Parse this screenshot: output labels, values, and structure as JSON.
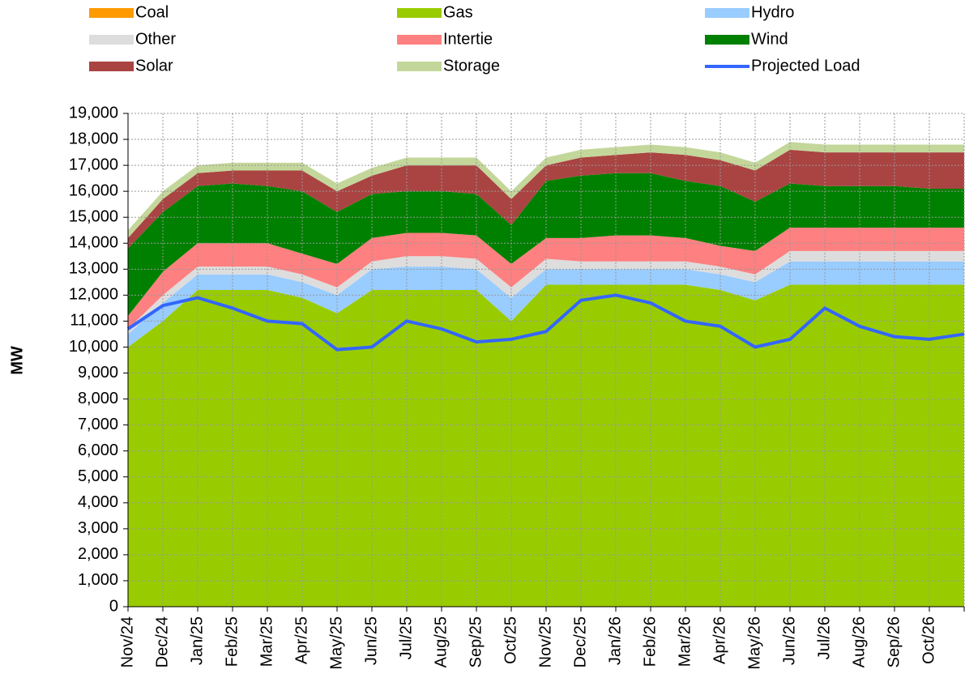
{
  "chart_data": {
    "type": "area",
    "y_label": "MW",
    "categories": [
      "Nov/24",
      "Dec/24",
      "Jan/25",
      "Feb/25",
      "Mar/25",
      "Apr/25",
      "May/25",
      "Jun/25",
      "Jul/25",
      "Aug/25",
      "Sep/25",
      "Oct/25",
      "Nov/25",
      "Dec/25",
      "Jan/26",
      "Feb/26",
      "Mar/26",
      "Apr/26",
      "May/26",
      "Jun/26",
      "Jul/26",
      "Aug/26",
      "Sep/26",
      "Oct/26",
      null
    ],
    "series": [
      {
        "name": "Coal",
        "color": "#ff9900",
        "values": [
          0,
          0,
          0,
          0,
          0,
          0,
          0,
          0,
          0,
          0,
          0,
          0,
          0,
          0,
          0,
          0,
          0,
          0,
          0,
          0,
          0,
          0,
          0,
          0,
          0
        ]
      },
      {
        "name": "Gas",
        "color": "#99cc00",
        "values": [
          10000,
          11000,
          12200,
          12200,
          12200,
          11900,
          11300,
          12200,
          12200,
          12200,
          12200,
          11000,
          12400,
          12400,
          12400,
          12400,
          12400,
          12200,
          11800,
          12400,
          12400,
          12400,
          12400,
          12400,
          12400
        ]
      },
      {
        "name": "Hydro",
        "color": "#99ccff",
        "values": [
          500,
          700,
          600,
          600,
          600,
          600,
          700,
          800,
          900,
          900,
          800,
          900,
          600,
          600,
          600,
          600,
          600,
          600,
          700,
          900,
          900,
          900,
          900,
          900,
          900
        ]
      },
      {
        "name": "Other",
        "color": "#dddddd",
        "values": [
          200,
          300,
          300,
          300,
          300,
          300,
          300,
          300,
          400,
          400,
          400,
          400,
          400,
          300,
          300,
          300,
          300,
          300,
          300,
          400,
          400,
          400,
          400,
          400,
          400
        ]
      },
      {
        "name": "Intertie",
        "color": "#ff8080",
        "values": [
          500,
          900,
          900,
          900,
          900,
          800,
          900,
          900,
          900,
          900,
          900,
          900,
          800,
          900,
          1000,
          1000,
          900,
          800,
          900,
          900,
          900,
          900,
          900,
          900,
          900
        ]
      },
      {
        "name": "Wind",
        "color": "#008000",
        "values": [
          2600,
          2300,
          2200,
          2300,
          2200,
          2400,
          2000,
          1700,
          1600,
          1600,
          1600,
          1500,
          2200,
          2400,
          2400,
          2400,
          2200,
          2300,
          1900,
          1700,
          1600,
          1600,
          1600,
          1500,
          1500
        ]
      },
      {
        "name": "Solar",
        "color": "#a94442",
        "values": [
          400,
          500,
          500,
          500,
          600,
          800,
          800,
          700,
          1000,
          1000,
          1100,
          1000,
          600,
          700,
          700,
          800,
          1000,
          1000,
          1200,
          1300,
          1300,
          1300,
          1300,
          1400,
          1400
        ]
      },
      {
        "name": "Storage",
        "color": "#c4d79b",
        "values": [
          300,
          300,
          300,
          300,
          300,
          300,
          300,
          300,
          300,
          300,
          300,
          300,
          300,
          300,
          300,
          300,
          300,
          300,
          300,
          300,
          300,
          300,
          300,
          300,
          300
        ]
      },
      {
        "name": "Projected Load",
        "color": "#3366ff",
        "type": "line",
        "values": [
          10700,
          11600,
          11900,
          11500,
          11000,
          10900,
          9900,
          10000,
          11000,
          10700,
          10200,
          10300,
          10600,
          11800,
          12000,
          11700,
          11000,
          10800,
          10000,
          10300,
          11500,
          10800,
          10400,
          10300,
          10500
        ]
      }
    ],
    "ylim": [
      0,
      19000
    ],
    "yticks": [
      0,
      {
        "value": 1000,
        "label": "1,000"
      },
      {
        "value": 2000,
        "label": "2,000"
      },
      {
        "value": 3000,
        "label": "3,000"
      },
      {
        "value": 4000,
        "label": "4,000"
      },
      {
        "value": 5000,
        "label": "5,000"
      },
      {
        "value": 6000,
        "label": "6,000"
      },
      {
        "value": 7000,
        "label": "7,000"
      },
      {
        "value": 8000,
        "label": "8,000"
      },
      {
        "value": 9000,
        "label": "9,000"
      },
      {
        "value": 10000,
        "label": "10,000"
      },
      {
        "value": 11000,
        "label": "11,000"
      },
      {
        "value": 12000,
        "label": "12,000"
      },
      {
        "value": 13000,
        "label": "13,000"
      },
      {
        "value": 14000,
        "label": "14,000"
      },
      {
        "value": 15000,
        "label": "15,000"
      },
      {
        "value": 16000,
        "label": "16,000"
      },
      {
        "value": 17000,
        "label": "17,000"
      },
      {
        "value": 18000,
        "label": "18,000"
      },
      {
        "value": 19000,
        "label": "19,000"
      }
    ],
    "grid": true,
    "legend": "top"
  }
}
